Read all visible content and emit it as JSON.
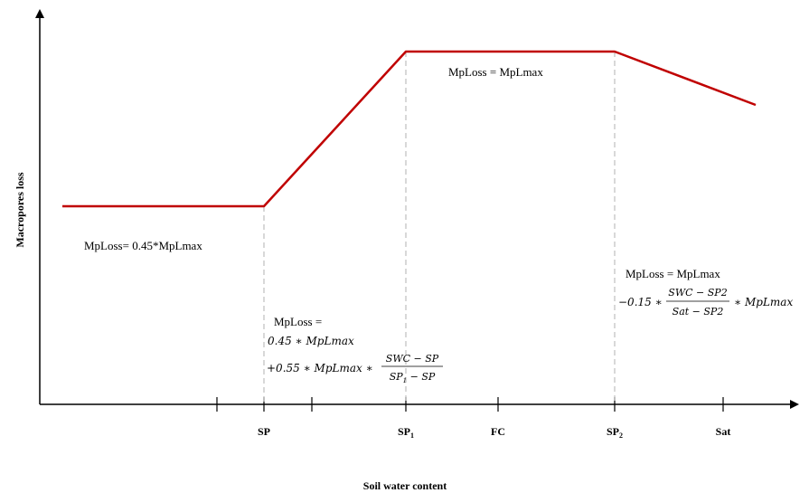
{
  "chart_data": {
    "type": "line",
    "xlabel": "Soil water content",
    "ylabel": "Macropores loss",
    "x_ticks": [
      "SP",
      "SP1",
      "FC",
      "SP2",
      "Sat"
    ],
    "series": [
      {
        "points": [
          {
            "x": "start",
            "y": "0.45*MpLmax"
          },
          {
            "x": "SP",
            "y": "0.45*MpLmax"
          },
          {
            "x": "SP1",
            "y": "MpLmax"
          },
          {
            "x": "SP2",
            "y": "MpLmax"
          },
          {
            "x": "end",
            "y": "decreasing"
          }
        ],
        "color": "#c00000"
      }
    ],
    "grid": false,
    "reference_lines": [
      "SP",
      "SP1",
      "SP2"
    ],
    "annotations": {
      "low": "MpLoss= 0.45*MpLmax",
      "ramp_head": "MpLoss =",
      "ramp_line1": "0.45 ∗ MpLmax",
      "ramp_line2_prefix": "+0.55 ∗ MpLmax ∗",
      "ramp_num": "SWC − SP",
      "ramp_den": "SP1 − SP",
      "plateau": "MpLoss = MpLmax",
      "decline_head": "MpLoss = MpLmax",
      "decline_prefix": "−0.15 ∗",
      "decline_num": "SWC − SP2",
      "decline_den": "Sat − SP2",
      "decline_suffix": "∗ MpLmax"
    }
  },
  "colors": {
    "line": "#c00000",
    "axis": "#000000",
    "guide": "#b0b0b0"
  }
}
